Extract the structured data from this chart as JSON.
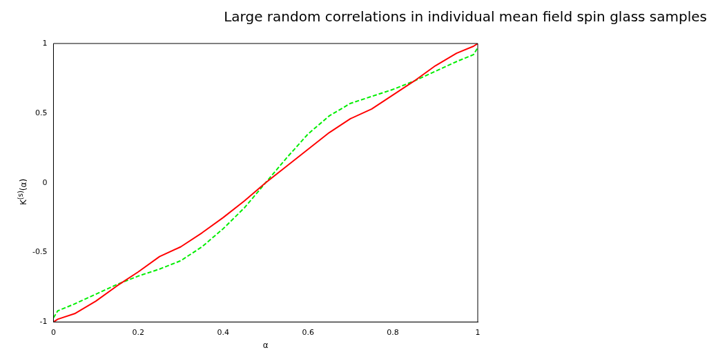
{
  "chart_data": {
    "type": "line",
    "title": "Large random correlations in individual mean field spin glass samples",
    "xlabel": "α",
    "ylabel": "K$^{(s)}$(α)",
    "x": [
      0,
      0.01,
      0.05,
      0.1,
      0.15,
      0.2,
      0.25,
      0.3,
      0.35,
      0.4,
      0.45,
      0.5,
      0.55,
      0.6,
      0.65,
      0.7,
      0.75,
      0.8,
      0.85,
      0.9,
      0.95,
      0.99,
      1
    ],
    "series": [
      {
        "color": "#ff0000",
        "line_style": "solid",
        "values": [
          -1,
          -0.98,
          -0.94,
          -0.85,
          -0.74,
          -0.64,
          -0.53,
          -0.46,
          -0.36,
          -0.25,
          -0.13,
          0,
          0.12,
          0.24,
          0.36,
          0.46,
          0.53,
          0.63,
          0.73,
          0.84,
          0.93,
          0.98,
          1
        ]
      },
      {
        "color": "#00ee00",
        "line_style": "dashed",
        "values": [
          -0.97,
          -0.92,
          -0.87,
          -0.8,
          -0.73,
          -0.67,
          -0.62,
          -0.56,
          -0.46,
          -0.33,
          -0.18,
          0,
          0.18,
          0.35,
          0.48,
          0.57,
          0.62,
          0.67,
          0.73,
          0.8,
          0.87,
          0.92,
          0.97
        ]
      }
    ],
    "xlim": [
      0,
      1
    ],
    "ylim": [
      -1,
      1
    ],
    "xticks": [
      0,
      0.2,
      0.4,
      0.6,
      0.8,
      1
    ],
    "yticks": [
      -1,
      -0.5,
      0,
      0.5,
      1
    ],
    "grid": false,
    "legend": false,
    "marker": "none"
  }
}
